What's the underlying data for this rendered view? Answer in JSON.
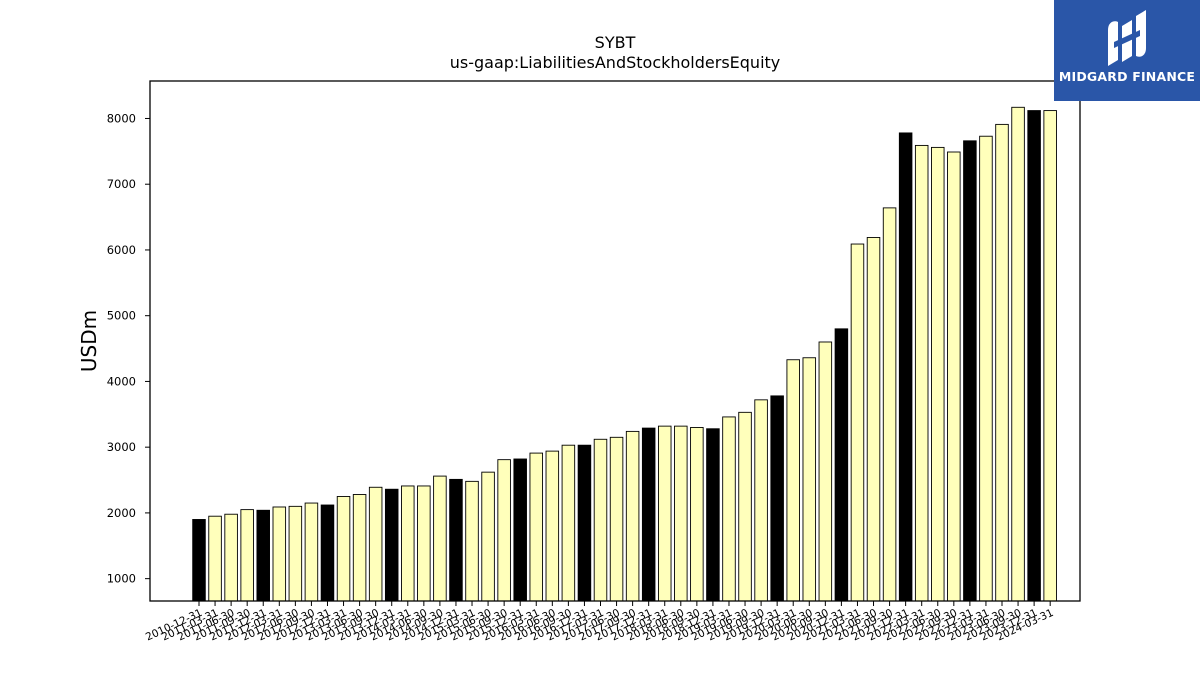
{
  "brand": {
    "name": "MIDGARD FINANCE",
    "logo_icon": "midgard-logo-icon",
    "background": "#2a56a8"
  },
  "chart_data": {
    "type": "bar",
    "title": "SYBT",
    "subtitle": "us-gaap:LiabilitiesAndStockholdersEquity",
    "xlabel": "",
    "ylabel": "USDm",
    "ylim": [
      660,
      8570
    ],
    "yticks": [
      1000,
      2000,
      3000,
      4000,
      5000,
      6000,
      7000,
      8000
    ],
    "grid": false,
    "colors": {
      "year_end": "#000000",
      "quarter": "#ffffbb",
      "edge": "#000000"
    },
    "categories": [
      "2010-12-31",
      "2011-03-31",
      "2011-06-30",
      "2011-09-30",
      "2011-12-31",
      "2012-03-31",
      "2012-06-30",
      "2012-09-30",
      "2012-12-31",
      "2013-03-31",
      "2013-06-30",
      "2013-09-30",
      "2013-12-31",
      "2014-03-31",
      "2014-06-30",
      "2014-09-30",
      "2014-12-31",
      "2015-03-31",
      "2015-06-30",
      "2015-09-30",
      "2015-12-31",
      "2016-03-31",
      "2016-06-30",
      "2016-09-30",
      "2016-12-31",
      "2017-03-31",
      "2017-06-30",
      "2017-09-30",
      "2017-12-31",
      "2018-03-31",
      "2018-06-30",
      "2018-09-30",
      "2018-12-31",
      "2019-03-31",
      "2019-06-30",
      "2019-09-30",
      "2019-12-31",
      "2020-03-31",
      "2020-06-30",
      "2020-09-30",
      "2020-12-31",
      "2021-03-31",
      "2021-06-30",
      "2021-09-30",
      "2021-12-31",
      "2022-03-31",
      "2022-06-30",
      "2022-09-30",
      "2022-12-31",
      "2023-03-31",
      "2023-06-30",
      "2023-09-30",
      "2023-12-31",
      "2024-03-31"
    ],
    "values": [
      1900,
      1950,
      1980,
      2050,
      2040,
      2090,
      2100,
      2150,
      2120,
      2250,
      2280,
      2390,
      2360,
      2410,
      2410,
      2560,
      2510,
      2480,
      2620,
      2810,
      2820,
      2910,
      2940,
      3030,
      3030,
      3120,
      3150,
      3240,
      3290,
      3320,
      3320,
      3300,
      3280,
      3460,
      3530,
      3720,
      3780,
      4330,
      4360,
      4600,
      4800,
      6090,
      6190,
      6640,
      7780,
      7590,
      7560,
      7490,
      7660,
      7730,
      7910,
      8170,
      8120,
      8120
    ],
    "year_end_flags": [
      1,
      0,
      0,
      0,
      1,
      0,
      0,
      0,
      1,
      0,
      0,
      0,
      1,
      0,
      0,
      0,
      1,
      0,
      0,
      0,
      1,
      0,
      0,
      0,
      1,
      0,
      0,
      0,
      1,
      0,
      0,
      0,
      1,
      0,
      0,
      0,
      1,
      0,
      0,
      0,
      1,
      0,
      0,
      0,
      1,
      0,
      0,
      0,
      1,
      0,
      0,
      0,
      1,
      0
    ]
  }
}
